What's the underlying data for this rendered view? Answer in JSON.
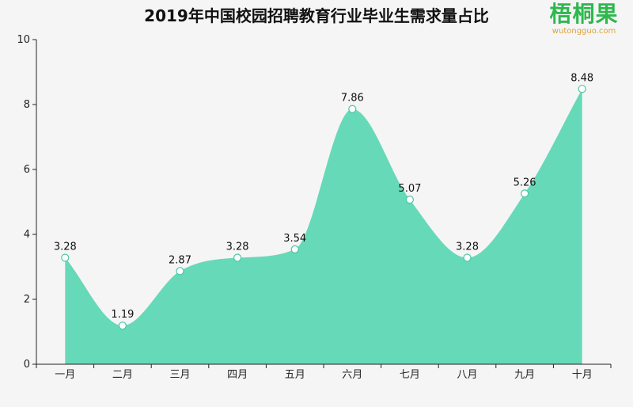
{
  "chart_data": {
    "type": "area",
    "title": "2019年中国校园招聘教育行业毕业生需求量占比",
    "categories": [
      "一月",
      "二月",
      "三月",
      "四月",
      "五月",
      "六月",
      "七月",
      "八月",
      "九月",
      "十月"
    ],
    "values": [
      3.28,
      1.19,
      2.87,
      3.28,
      3.54,
      7.86,
      5.07,
      3.28,
      5.26,
      8.48
    ],
    "data_labels": [
      "3.28",
      "1.19",
      "2.87",
      "3.28",
      "3.54",
      "7.86",
      "5.07",
      "3.28",
      "5.26",
      "8.48"
    ],
    "ylim": [
      0,
      10
    ],
    "yticks": [
      0,
      2,
      4,
      6,
      8,
      10
    ],
    "ytick_labels": [
      "0",
      "2",
      "4",
      "6",
      "8",
      "10"
    ],
    "xlabel": "",
    "ylabel": "",
    "smooth": true,
    "grid": false,
    "fill_color": "#66d9b8",
    "marker_fill": "#ffffff"
  },
  "logo": {
    "text": "梧桐果",
    "subtext": "wutongguo.com"
  }
}
